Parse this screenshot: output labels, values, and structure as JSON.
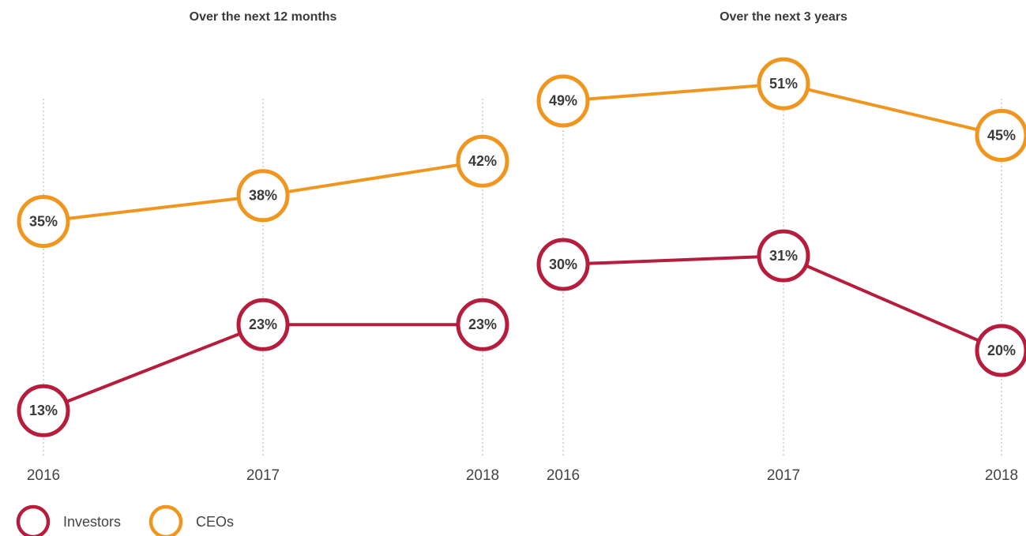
{
  "chart_data": [
    {
      "type": "line",
      "title": "Over the next 12 months",
      "categories": [
        "2016",
        "2017",
        "2018"
      ],
      "series": [
        {
          "name": "Investors",
          "color": "#b71c3c",
          "values": [
            13,
            23,
            23
          ],
          "value_labels": [
            "13%",
            "23%",
            "23%"
          ]
        },
        {
          "name": "CEOs",
          "color": "#f0961e",
          "values": [
            35,
            38,
            42
          ],
          "value_labels": [
            "35%",
            "38%",
            "42%"
          ]
        }
      ],
      "legend": "bottom-left",
      "grid": true
    },
    {
      "type": "line",
      "title": "Over the next 3 years",
      "categories": [
        "2016",
        "2017",
        "2018"
      ],
      "series": [
        {
          "name": "Investors",
          "color": "#b71c3c",
          "values": [
            30,
            31,
            20
          ],
          "value_labels": [
            "30%",
            "31%",
            "20%"
          ]
        },
        {
          "name": "CEOs",
          "color": "#f0961e",
          "values": [
            49,
            51,
            45
          ],
          "value_labels": [
            "49%",
            "51%",
            "45%"
          ]
        }
      ],
      "grid": true
    }
  ]
}
